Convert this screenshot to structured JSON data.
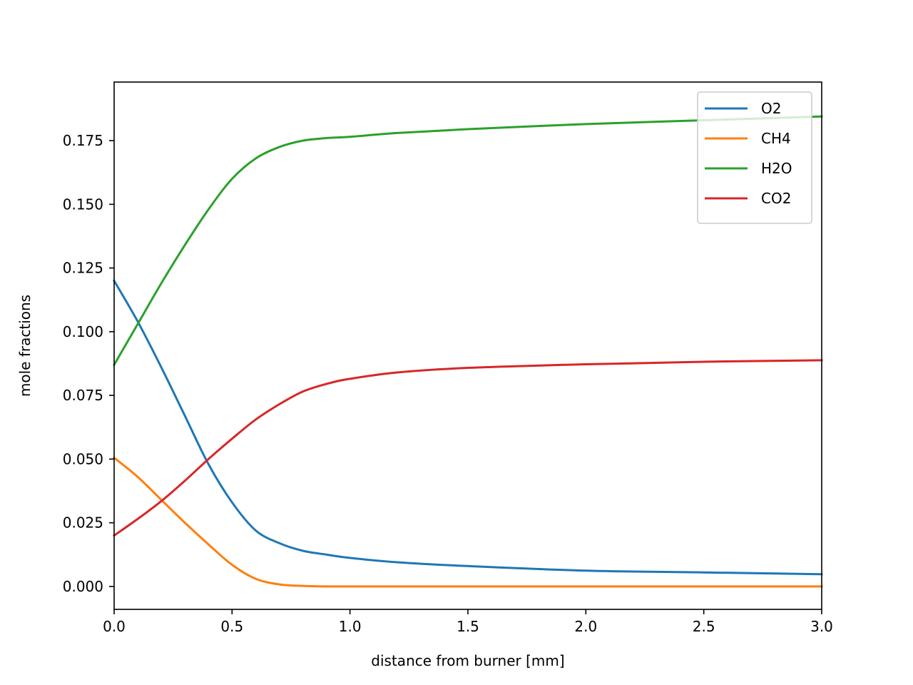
{
  "chart_data": {
    "type": "line",
    "xlabel": "distance from burner [mm]",
    "ylabel": "mole fractions",
    "xlim": [
      0.0,
      3.0
    ],
    "ylim": [
      -0.009,
      0.198
    ],
    "xticks": [
      0.0,
      0.5,
      1.0,
      1.5,
      2.0,
      2.5,
      3.0
    ],
    "xtick_labels": [
      "0.0",
      "0.5",
      "1.0",
      "1.5",
      "2.0",
      "2.5",
      "3.0"
    ],
    "yticks": [
      0.0,
      0.025,
      0.05,
      0.075,
      0.1,
      0.125,
      0.15,
      0.175
    ],
    "ytick_labels": [
      "0.000",
      "0.025",
      "0.050",
      "0.075",
      "0.100",
      "0.125",
      "0.150",
      "0.175"
    ],
    "grid": false,
    "legend_position": "top-right",
    "series": [
      {
        "name": "O2",
        "color": "#1f77b4",
        "x": [
          0.0,
          0.1,
          0.2,
          0.3,
          0.4,
          0.5,
          0.6,
          0.7,
          0.8,
          0.9,
          1.0,
          1.2,
          1.5,
          2.0,
          2.5,
          3.0
        ],
        "y": [
          0.12,
          0.104,
          0.086,
          0.067,
          0.048,
          0.033,
          0.022,
          0.017,
          0.014,
          0.0125,
          0.0112,
          0.0095,
          0.008,
          0.0062,
          0.0055,
          0.0048
        ]
      },
      {
        "name": "CH4",
        "color": "#ff7f0e",
        "x": [
          0.0,
          0.1,
          0.2,
          0.3,
          0.4,
          0.5,
          0.6,
          0.7,
          0.8,
          0.9,
          1.0,
          1.5,
          2.0,
          2.5,
          3.0
        ],
        "y": [
          0.0505,
          0.043,
          0.034,
          0.025,
          0.0165,
          0.0085,
          0.003,
          0.0008,
          0.0002,
          0.0,
          0.0,
          0.0,
          0.0,
          0.0,
          0.0
        ]
      },
      {
        "name": "H2O",
        "color": "#2ca02c",
        "x": [
          0.0,
          0.1,
          0.2,
          0.3,
          0.4,
          0.5,
          0.6,
          0.7,
          0.8,
          0.9,
          1.0,
          1.2,
          1.5,
          2.0,
          2.5,
          3.0
        ],
        "y": [
          0.087,
          0.103,
          0.119,
          0.134,
          0.148,
          0.16,
          0.168,
          0.1725,
          0.175,
          0.176,
          0.1765,
          0.178,
          0.1795,
          0.1815,
          0.183,
          0.1845
        ]
      },
      {
        "name": "CO2",
        "color": "#d62728",
        "x": [
          0.0,
          0.1,
          0.2,
          0.3,
          0.4,
          0.5,
          0.6,
          0.7,
          0.8,
          0.9,
          1.0,
          1.2,
          1.5,
          2.0,
          2.5,
          3.0
        ],
        "y": [
          0.02,
          0.0265,
          0.0335,
          0.0415,
          0.05,
          0.058,
          0.0655,
          0.0715,
          0.0765,
          0.0795,
          0.0815,
          0.084,
          0.0858,
          0.0872,
          0.0882,
          0.0888
        ]
      }
    ]
  }
}
